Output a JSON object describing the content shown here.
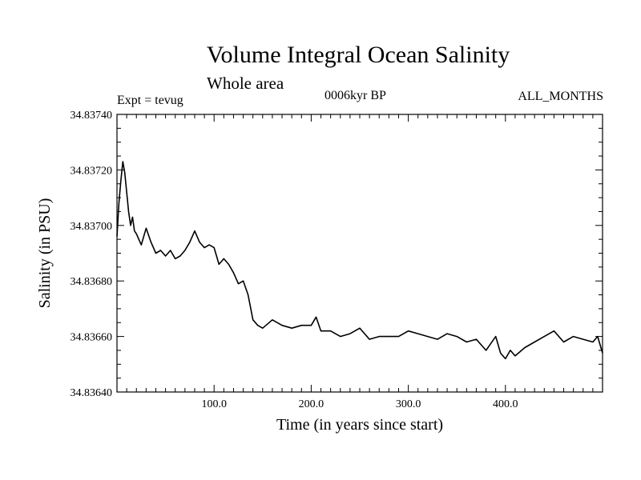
{
  "header": {
    "title": "Volume Integral Ocean Salinity",
    "subtitle": "Whole area",
    "experiment": "Expt = tevug",
    "period": "0006kyr BP",
    "months": "ALL_MONTHS"
  },
  "chart_data": {
    "type": "line",
    "title": "Volume Integral Ocean Salinity",
    "subtitle": "Whole area",
    "xlabel": "Time (in years since start)",
    "ylabel": "Salinity (in PSU)",
    "xlim": [
      0,
      500
    ],
    "ylim": [
      34.8364,
      34.8374
    ],
    "x_ticks": [
      100,
      200,
      300,
      400
    ],
    "x_tick_labels": [
      "100.0",
      "200.0",
      "300.0",
      "400.0"
    ],
    "y_ticks": [
      34.8364,
      34.8366,
      34.8368,
      34.837,
      34.8372,
      34.8374
    ],
    "y_tick_labels": [
      "34.83640",
      "34.83660",
      "34.83680",
      "34.83700",
      "34.83720",
      "34.83740"
    ],
    "grid": false,
    "line_color": "#000000",
    "series": [
      {
        "x": [
          0,
          2,
          4,
          6,
          8,
          10,
          12,
          14,
          16,
          18,
          20,
          25,
          30,
          35,
          40,
          45,
          50,
          55,
          60,
          65,
          70,
          75,
          80,
          85,
          90,
          95,
          100,
          105,
          110,
          115,
          120,
          125,
          130,
          135,
          140,
          145,
          150,
          160,
          170,
          180,
          190,
          200,
          205,
          210,
          220,
          230,
          240,
          250,
          260,
          270,
          280,
          290,
          300,
          310,
          320,
          330,
          340,
          350,
          360,
          370,
          380,
          390,
          395,
          400,
          405,
          410,
          420,
          430,
          440,
          450,
          460,
          470,
          480,
          490,
          495,
          500
        ],
        "y": [
          34.83696,
          34.83708,
          34.83716,
          34.83723,
          34.83719,
          34.83712,
          34.83705,
          34.837,
          34.83703,
          34.83698,
          34.83697,
          34.83693,
          34.83699,
          34.83694,
          34.8369,
          34.83691,
          34.83689,
          34.83691,
          34.83688,
          34.83689,
          34.83691,
          34.83694,
          34.83698,
          34.83694,
          34.83692,
          34.83693,
          34.83692,
          34.83686,
          34.83688,
          34.83686,
          34.83683,
          34.83679,
          34.8368,
          34.83675,
          34.83666,
          34.83664,
          34.83663,
          34.83666,
          34.83664,
          34.83663,
          34.83664,
          34.83664,
          34.83667,
          34.83662,
          34.83662,
          34.8366,
          34.83661,
          34.83663,
          34.83659,
          34.8366,
          34.8366,
          34.8366,
          34.83662,
          34.83661,
          34.8366,
          34.83659,
          34.83661,
          34.8366,
          34.83658,
          34.83659,
          34.83655,
          34.8366,
          34.83654,
          34.83652,
          34.83655,
          34.83653,
          34.83656,
          34.83658,
          34.8366,
          34.83662,
          34.83658,
          34.8366,
          34.83659,
          34.83658,
          34.8366,
          34.83654
        ]
      }
    ]
  }
}
